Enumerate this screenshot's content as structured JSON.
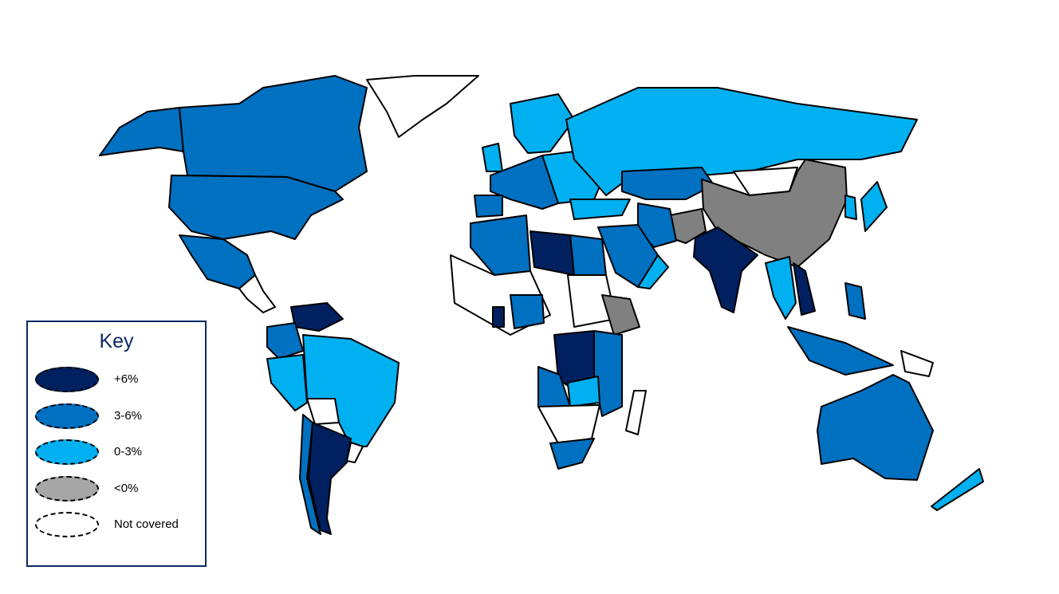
{
  "colors": {
    "plus6": "#002060",
    "mid": "#0070C0",
    "low": "#00B0F0",
    "neg": "#A6A6A6",
    "neg_map": "#808080",
    "none": "#FFFFFF"
  },
  "legend": {
    "title": "Key",
    "items": [
      {
        "label": "+6%",
        "color": "#002060"
      },
      {
        "label": "3-6%",
        "color": "#0070C0"
      },
      {
        "label": "0-3%",
        "color": "#00B0F0"
      },
      {
        "label": "<0%",
        "color": "#A6A6A6"
      },
      {
        "label": "Not covered",
        "color": "#FFFFFF"
      }
    ]
  },
  "regions": {
    "alaska": "3-6%",
    "canada": "3-6%",
    "greenland": "Not covered",
    "usa": "3-6%",
    "mexico": "3-6%",
    "central-america": "Not covered",
    "venezuela": "+6%",
    "colombia": "3-6%",
    "peru": "0-3%",
    "brazil": "0-3%",
    "bolivia": "Not covered",
    "chile": "3-6%",
    "argentina": "+6%",
    "uruguay": "Not covered",
    "scandinavia": "0-3%",
    "uk": "0-3%",
    "western-europe": "3-6%",
    "eastern-europe": "0-3%",
    "iberia": "3-6%",
    "russia": "0-3%",
    "kazakhstan": "3-6%",
    "mongolia": "Not covered",
    "china": "<0%",
    "pakistan": "<0%",
    "india": "+6%",
    "turkey": "0-3%",
    "iran": "3-6%",
    "saudi-arabia": "3-6%",
    "oman": "0-3%",
    "north-africa-west": "3-6%",
    "libya": "+6%",
    "egypt": "3-6%",
    "west-africa": "Not covered",
    "sudan": "Not covered",
    "ethiopia": "<0%",
    "nigeria": "3-6%",
    "ghana": "+6%",
    "drc": "+6%",
    "angola": "3-6%",
    "east-africa": "3-6%",
    "zambia": "0-3%",
    "southern-africa": "Not covered",
    "south-africa": "3-6%",
    "madagascar": "Not covered",
    "myanmar-thailand": "0-3%",
    "vietnam": "+6%",
    "indonesia": "3-6%",
    "philippines": "3-6%",
    "japan": "0-3%",
    "korea": "0-3%",
    "australia": "3-6%",
    "new-zealand": "0-3%",
    "papua-new-guinea": "Not covered"
  }
}
